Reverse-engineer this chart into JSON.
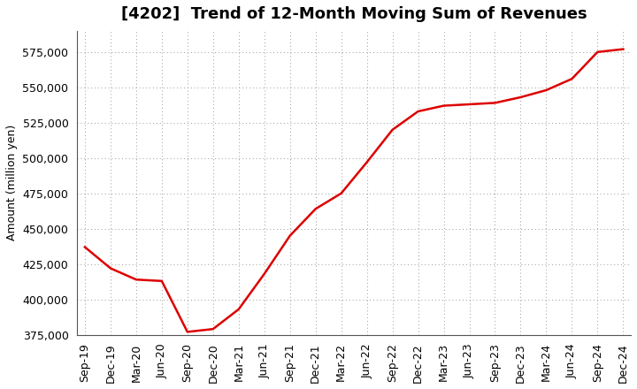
{
  "title": "[4202]  Trend of 12-Month Moving Sum of Revenues",
  "ylabel": "Amount (million yen)",
  "line_color": "#dd0000",
  "line_width": 1.8,
  "background_color": "#ffffff",
  "grid_color": "#999999",
  "ylim": [
    375000,
    590000
  ],
  "yticks": [
    375000,
    400000,
    425000,
    450000,
    475000,
    500000,
    525000,
    550000,
    575000
  ],
  "x_labels": [
    "Sep-19",
    "Dec-19",
    "Mar-20",
    "Jun-20",
    "Sep-20",
    "Dec-20",
    "Mar-21",
    "Jun-21",
    "Sep-21",
    "Dec-21",
    "Mar-22",
    "Jun-22",
    "Sep-22",
    "Dec-22",
    "Mar-23",
    "Jun-23",
    "Sep-23",
    "Dec-23",
    "Mar-24",
    "Jun-24",
    "Sep-24",
    "Dec-24"
  ],
  "values": [
    437000,
    422000,
    414000,
    413000,
    377000,
    379000,
    393000,
    418000,
    445000,
    464000,
    475000,
    497000,
    520000,
    533000,
    537000,
    538000,
    539000,
    543000,
    548000,
    556000,
    575000,
    577000
  ],
  "title_fontsize": 13,
  "ylabel_fontsize": 9,
  "tick_fontsize": 9
}
